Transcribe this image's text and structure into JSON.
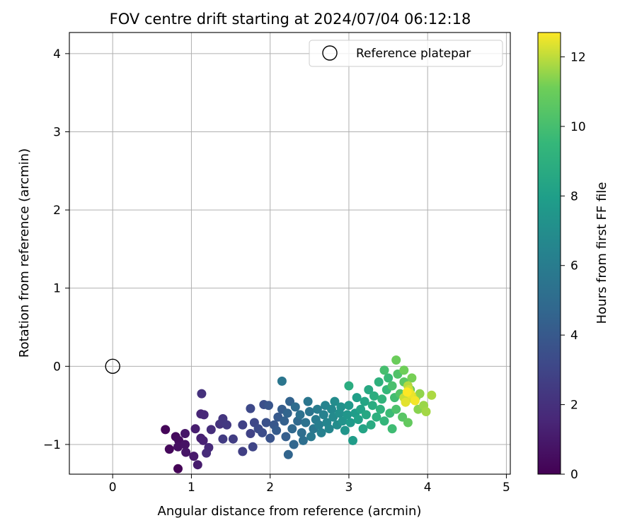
{
  "chart_data": {
    "type": "scatter",
    "title": "FOV centre drift starting at 2024/07/04 06:12:18",
    "xlabel": "Angular distance from reference (arcmin)",
    "ylabel": "Rotation from reference (arcmin)",
    "xlim": [
      -0.55,
      5.05
    ],
    "ylim": [
      -1.38,
      4.27
    ],
    "xticks": [
      0,
      1,
      2,
      3,
      4,
      5
    ],
    "yticks": [
      -1,
      0,
      1,
      2,
      3,
      4
    ],
    "grid": true,
    "legend": {
      "placement": "top-right",
      "entries": [
        {
          "label": "Reference platepar",
          "marker": "open-circle"
        }
      ]
    },
    "reference_point": {
      "x": 0,
      "y": 0
    },
    "colorbar": {
      "label": "Hours from first FF file",
      "colormap": "viridis",
      "range": [
        0,
        12.7
      ],
      "ticks": [
        0,
        2,
        4,
        6,
        8,
        10,
        12
      ]
    },
    "series": [
      {
        "fields": [
          "x",
          "y",
          "hours"
        ],
        "points": [
          [
            0.83,
            -1.31,
            0.1
          ],
          [
            0.67,
            -0.81,
            0.2
          ],
          [
            0.72,
            -1.06,
            0.3
          ],
          [
            0.8,
            -0.9,
            0.4
          ],
          [
            0.84,
            -0.95,
            0.5
          ],
          [
            0.83,
            -1.03,
            0.6
          ],
          [
            0.92,
            -1.0,
            0.7
          ],
          [
            0.93,
            -1.1,
            0.8
          ],
          [
            0.92,
            -0.86,
            0.9
          ],
          [
            1.03,
            -1.15,
            1.0
          ],
          [
            1.08,
            -1.26,
            1.1
          ],
          [
            1.05,
            -0.8,
            1.2
          ],
          [
            1.12,
            -0.92,
            1.3
          ],
          [
            1.15,
            -0.95,
            1.4
          ],
          [
            1.12,
            -0.61,
            1.5
          ],
          [
            1.16,
            -0.62,
            1.6
          ],
          [
            1.22,
            -1.04,
            1.7
          ],
          [
            1.19,
            -1.11,
            1.8
          ],
          [
            1.25,
            -0.81,
            1.9
          ],
          [
            1.13,
            -0.35,
            2.0
          ],
          [
            1.36,
            -0.74,
            2.1
          ],
          [
            1.4,
            -0.67,
            2.2
          ],
          [
            1.4,
            -0.71,
            2.3
          ],
          [
            1.45,
            -0.75,
            2.4
          ],
          [
            1.4,
            -0.93,
            2.5
          ],
          [
            1.53,
            -0.93,
            2.6
          ],
          [
            1.65,
            -1.09,
            2.7
          ],
          [
            1.65,
            -0.75,
            2.8
          ],
          [
            1.75,
            -0.86,
            2.9
          ],
          [
            1.78,
            -1.03,
            3.0
          ],
          [
            1.8,
            -0.72,
            3.1
          ],
          [
            1.75,
            -0.54,
            3.2
          ],
          [
            1.85,
            -0.8,
            3.3
          ],
          [
            1.9,
            -0.85,
            3.4
          ],
          [
            1.92,
            -0.49,
            3.5
          ],
          [
            1.95,
            -0.72,
            3.6
          ],
          [
            2.0,
            -0.92,
            3.7
          ],
          [
            1.98,
            -0.5,
            3.8
          ],
          [
            2.05,
            -0.75,
            3.9
          ],
          [
            2.1,
            -0.65,
            4.0
          ],
          [
            2.08,
            -0.82,
            4.1
          ],
          [
            2.15,
            -0.55,
            4.2
          ],
          [
            2.2,
            -0.9,
            4.3
          ],
          [
            2.18,
            -0.7,
            4.4
          ],
          [
            2.25,
            -0.45,
            4.5
          ],
          [
            2.22,
            -0.6,
            4.6
          ],
          [
            2.23,
            -1.13,
            4.6
          ],
          [
            2.3,
            -1.0,
            4.7
          ],
          [
            2.28,
            -0.8,
            4.8
          ],
          [
            2.35,
            -0.7,
            4.9
          ],
          [
            2.32,
            -0.52,
            5.0
          ],
          [
            2.4,
            -0.85,
            5.1
          ],
          [
            2.42,
            -0.95,
            5.2
          ],
          [
            2.38,
            -0.62,
            5.3
          ],
          [
            2.45,
            -0.72,
            5.4
          ],
          [
            2.5,
            -0.58,
            5.5
          ],
          [
            2.48,
            -0.45,
            5.6
          ],
          [
            2.15,
            -0.19,
            5.6
          ],
          [
            2.55,
            -0.8,
            5.7
          ],
          [
            2.52,
            -0.9,
            5.8
          ],
          [
            2.58,
            -0.68,
            5.9
          ],
          [
            2.6,
            -0.55,
            6.0
          ],
          [
            2.62,
            -0.75,
            6.1
          ],
          [
            2.65,
            -0.85,
            6.2
          ],
          [
            2.68,
            -0.62,
            6.3
          ],
          [
            2.7,
            -0.5,
            6.4
          ],
          [
            2.72,
            -0.72,
            6.5
          ],
          [
            2.75,
            -0.8,
            6.6
          ],
          [
            2.78,
            -0.55,
            6.7
          ],
          [
            2.8,
            -0.65,
            6.8
          ],
          [
            2.82,
            -0.45,
            6.9
          ],
          [
            2.85,
            -0.75,
            7.0
          ],
          [
            2.88,
            -0.6,
            7.1
          ],
          [
            2.9,
            -0.52,
            7.2
          ],
          [
            2.92,
            -0.7,
            7.3
          ],
          [
            2.95,
            -0.82,
            7.4
          ],
          [
            2.98,
            -0.62,
            7.5
          ],
          [
            3.0,
            -0.5,
            7.6
          ],
          [
            3.02,
            -0.72,
            7.7
          ],
          [
            3.05,
            -0.95,
            7.8
          ],
          [
            3.08,
            -0.6,
            7.9
          ],
          [
            3.1,
            -0.4,
            8.0
          ],
          [
            3.12,
            -0.68,
            8.1
          ],
          [
            3.15,
            -0.55,
            8.2
          ],
          [
            3.18,
            -0.8,
            8.3
          ],
          [
            3.2,
            -0.45,
            8.4
          ],
          [
            3.22,
            -0.62,
            8.5
          ],
          [
            3.25,
            -0.3,
            8.6
          ],
          [
            3.28,
            -0.75,
            8.7
          ],
          [
            3.3,
            -0.5,
            8.8
          ],
          [
            3.0,
            -0.25,
            8.8
          ],
          [
            3.32,
            -0.38,
            8.9
          ],
          [
            3.35,
            -0.65,
            9.0
          ],
          [
            3.38,
            -0.2,
            9.1
          ],
          [
            3.4,
            -0.55,
            9.2
          ],
          [
            3.42,
            -0.42,
            9.3
          ],
          [
            3.45,
            -0.7,
            9.4
          ],
          [
            3.48,
            -0.3,
            9.5
          ],
          [
            3.5,
            -0.15,
            9.6
          ],
          [
            3.52,
            -0.6,
            9.7
          ],
          [
            3.55,
            -0.8,
            9.8
          ],
          [
            3.58,
            -0.4,
            9.9
          ],
          [
            3.45,
            -0.05,
            10.0
          ],
          [
            3.55,
            -0.25,
            10.1
          ],
          [
            3.6,
            -0.55,
            10.2
          ],
          [
            3.62,
            -0.1,
            10.3
          ],
          [
            3.65,
            -0.35,
            10.4
          ],
          [
            3.68,
            -0.65,
            10.5
          ],
          [
            3.7,
            -0.2,
            10.6
          ],
          [
            3.72,
            -0.45,
            10.7
          ],
          [
            3.75,
            -0.72,
            10.8
          ],
          [
            3.78,
            -0.3,
            10.9
          ],
          [
            3.6,
            0.08,
            11.0
          ],
          [
            3.7,
            -0.05,
            11.1
          ],
          [
            3.8,
            -0.15,
            11.2
          ],
          [
            3.85,
            -0.4,
            11.3
          ],
          [
            3.88,
            -0.55,
            11.4
          ],
          [
            3.9,
            -0.35,
            11.5
          ],
          [
            3.95,
            -0.5,
            11.6
          ],
          [
            3.98,
            -0.58,
            11.7
          ],
          [
            4.05,
            -0.37,
            11.8
          ],
          [
            3.75,
            -0.25,
            11.9
          ],
          [
            3.82,
            -0.42,
            12.0
          ],
          [
            3.7,
            -0.4,
            12.1
          ],
          [
            3.76,
            -0.3,
            12.2
          ],
          [
            3.8,
            -0.38,
            12.3
          ],
          [
            3.72,
            -0.46,
            12.4
          ],
          [
            3.78,
            -0.35,
            12.5
          ],
          [
            3.84,
            -0.44,
            12.6
          ],
          [
            3.74,
            -0.33,
            12.7
          ]
        ]
      }
    ]
  }
}
